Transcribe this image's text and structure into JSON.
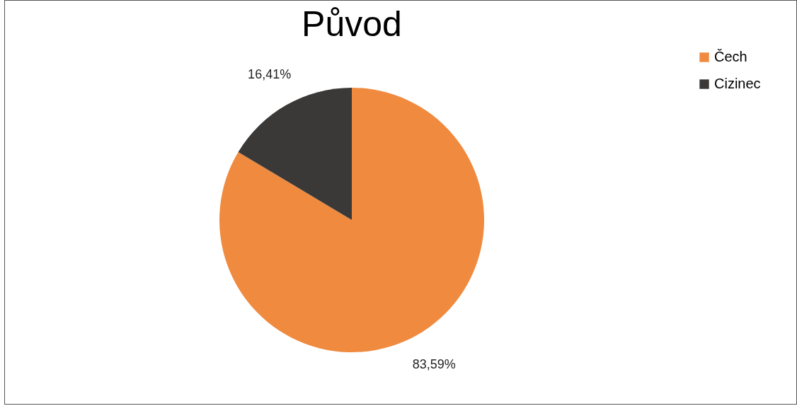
{
  "chart_data": {
    "type": "pie",
    "title": "Původ",
    "categories": [
      "Čech",
      "Cizinec"
    ],
    "values": [
      83.59,
      16.41
    ],
    "value_labels": [
      "83,59%",
      "16,41%"
    ],
    "colors": [
      "#ef8a3f",
      "#3a3938"
    ],
    "legend": "right"
  }
}
